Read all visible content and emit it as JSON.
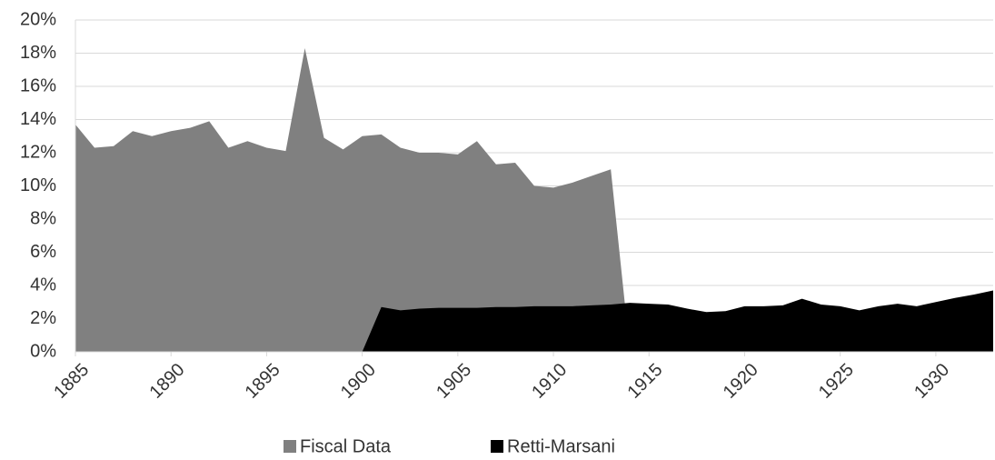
{
  "chart_data": {
    "type": "area",
    "x": [
      1885,
      1886,
      1887,
      1888,
      1889,
      1890,
      1891,
      1892,
      1893,
      1894,
      1895,
      1896,
      1897,
      1898,
      1899,
      1900,
      1901,
      1902,
      1903,
      1904,
      1905,
      1906,
      1907,
      1908,
      1909,
      1910,
      1911,
      1912,
      1913,
      1914,
      1915,
      1916,
      1917,
      1918,
      1919,
      1920,
      1921,
      1922,
      1923,
      1924,
      1925,
      1926,
      1927,
      1928,
      1929,
      1930,
      1931,
      1932,
      1933
    ],
    "series": [
      {
        "name": "Fiscal Data",
        "color": "#808080",
        "values": [
          13.7,
          12.3,
          12.4,
          13.3,
          13.0,
          13.3,
          13.5,
          13.9,
          12.3,
          12.7,
          12.3,
          12.1,
          18.3,
          12.9,
          12.2,
          13.0,
          13.1,
          12.3,
          12.0,
          12.0,
          11.9,
          12.7,
          11.3,
          11.4,
          10.0,
          9.9,
          10.2,
          10.6,
          11.0,
          0,
          null,
          null,
          null,
          null,
          null,
          null,
          null,
          null,
          null,
          null,
          null,
          null,
          null,
          null,
          null,
          null,
          null,
          null,
          null
        ]
      },
      {
        "name": "Retti-Marsani",
        "color": "#000000",
        "values": [
          null,
          null,
          null,
          null,
          null,
          null,
          null,
          null,
          null,
          null,
          null,
          null,
          null,
          null,
          null,
          0,
          2.7,
          2.5,
          2.6,
          2.65,
          2.65,
          2.65,
          2.7,
          2.7,
          2.75,
          2.75,
          2.75,
          2.8,
          2.85,
          2.95,
          2.9,
          2.85,
          2.6,
          2.4,
          2.45,
          2.75,
          2.75,
          2.8,
          3.2,
          2.85,
          2.75,
          2.5,
          2.75,
          2.9,
          2.75,
          3.0,
          3.25,
          3.45,
          3.7
        ]
      }
    ],
    "xlim": [
      1885,
      1933
    ],
    "xticks": [
      1885,
      1890,
      1895,
      1900,
      1905,
      1910,
      1915,
      1920,
      1925,
      1930
    ],
    "ylim": [
      0,
      20
    ],
    "yticks": [
      {
        "value": 0,
        "label": "0%"
      },
      {
        "value": 2,
        "label": "2%"
      },
      {
        "value": 4,
        "label": "4%"
      },
      {
        "value": 6,
        "label": "6%"
      },
      {
        "value": 8,
        "label": "8%"
      },
      {
        "value": 10,
        "label": "10%"
      },
      {
        "value": 12,
        "label": "12%"
      },
      {
        "value": 14,
        "label": "14%"
      },
      {
        "value": 16,
        "label": "16%"
      },
      {
        "value": 18,
        "label": "18%"
      },
      {
        "value": 20,
        "label": "20%"
      }
    ],
    "grid": true,
    "legend": "bottom"
  }
}
